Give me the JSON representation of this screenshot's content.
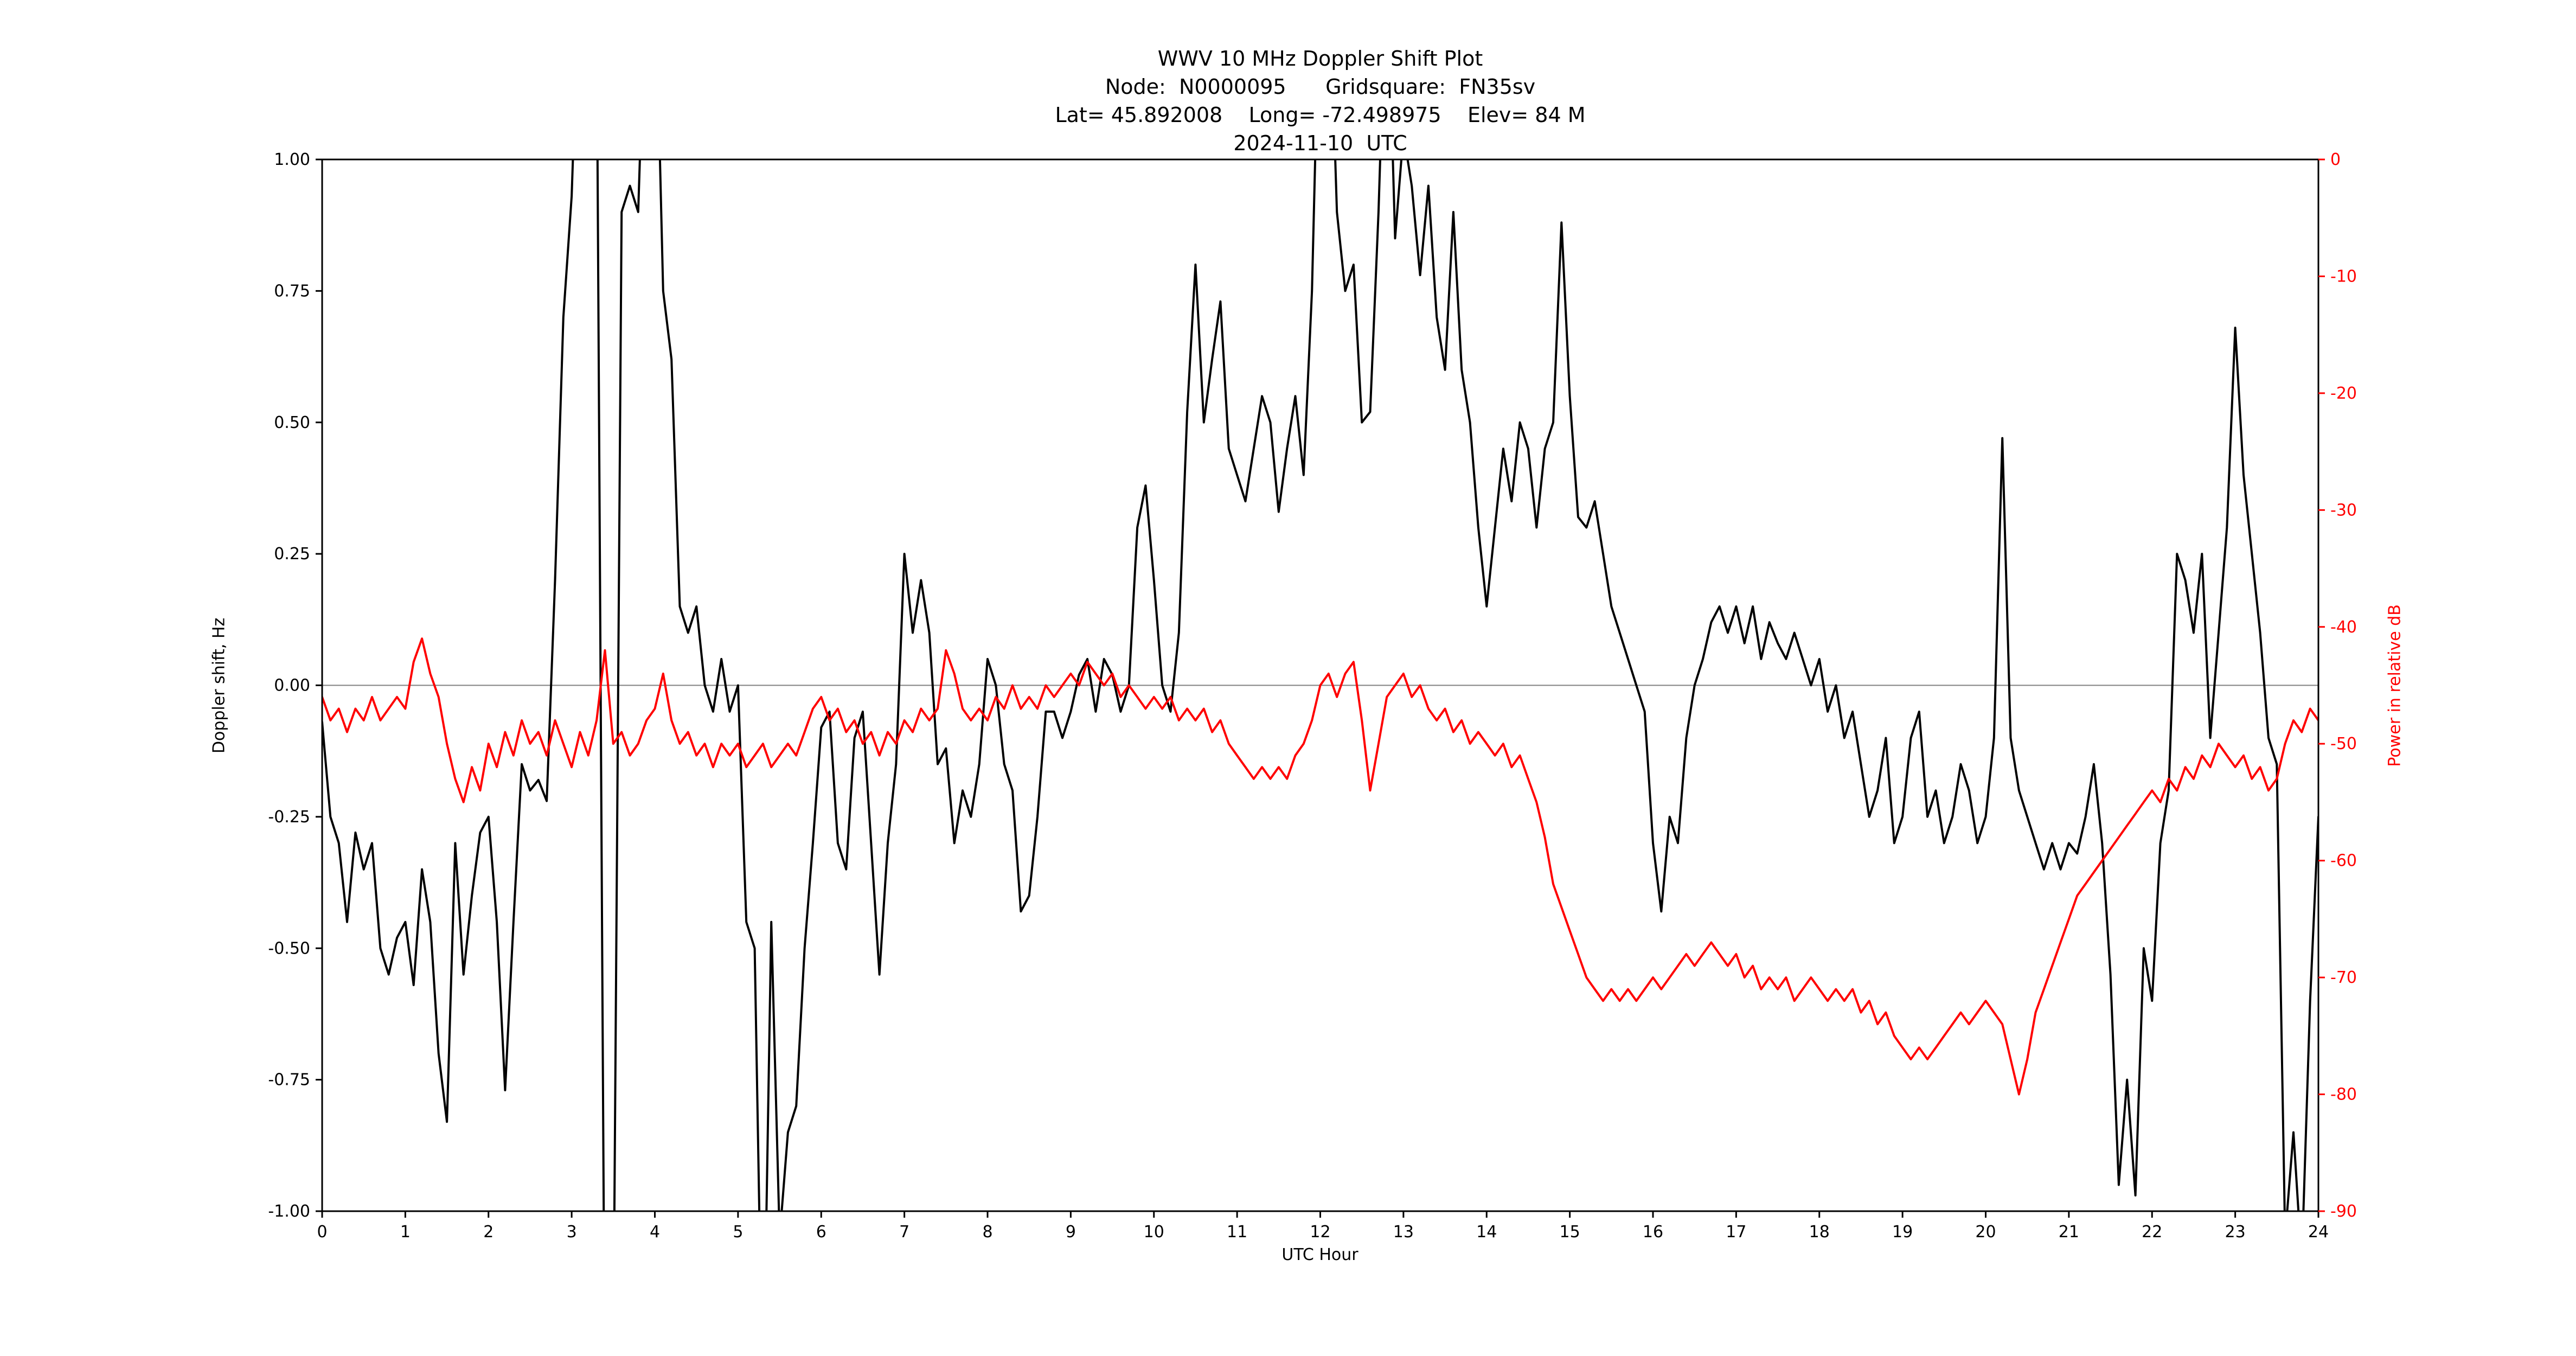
{
  "colors": {
    "background": "#ffffff",
    "doppler_line": "#000000",
    "power_line": "#ff0000",
    "zero_line": "#808080",
    "spine": "#000000"
  },
  "chart_data": {
    "type": "line",
    "title": "WWV 10 MHz Doppler Shift Plot",
    "subtitle_lines": [
      "Node:  N0000095      Gridsquare:  FN35sv",
      "Lat= 45.892008    Long= -72.498975    Elev= 84 M",
      "2024-11-10  UTC"
    ],
    "xlabel": "UTC Hour",
    "ylabel_left": "Doppler shift, Hz",
    "ylabel_right": "Power in relative dB",
    "x_range": [
      0,
      24
    ],
    "y_left_range": [
      -1.0,
      1.0
    ],
    "y_right_range": [
      -90,
      0
    ],
    "grid": false,
    "zero_line_y": 0.0,
    "legend": "none",
    "x_ticks": {
      "values": [
        0,
        1,
        2,
        3,
        4,
        5,
        6,
        7,
        8,
        9,
        10,
        11,
        12,
        13,
        14,
        15,
        16,
        17,
        18,
        19,
        20,
        21,
        22,
        23,
        24
      ],
      "labels": [
        "0",
        "1",
        "2",
        "3",
        "4",
        "5",
        "6",
        "7",
        "8",
        "9",
        "10",
        "11",
        "12",
        "13",
        "14",
        "15",
        "16",
        "17",
        "18",
        "19",
        "20",
        "21",
        "22",
        "23",
        "24"
      ]
    },
    "y_left_ticks": {
      "values": [
        1.0,
        0.75,
        0.5,
        0.25,
        0.0,
        -0.25,
        -0.5,
        -0.75,
        -1.0
      ],
      "labels": [
        "1.00",
        "0.75",
        "0.50",
        "0.25",
        "0.00",
        "-0.25",
        "-0.50",
        "-0.75",
        "-1.00"
      ]
    },
    "y_right_ticks": {
      "values": [
        0,
        -10,
        -20,
        -30,
        -40,
        -50,
        -60,
        -70,
        -80,
        -90
      ],
      "labels": [
        "0",
        "-10",
        "-20",
        "-30",
        "-40",
        "-50",
        "-60",
        "-70",
        "-80",
        "-90"
      ]
    },
    "series": [
      {
        "name": "Doppler shift (Hz)",
        "axis": "left",
        "color": "#000000",
        "x_start": 0,
        "x_step": 0.1,
        "y": [
          -0.07,
          -0.25,
          -0.3,
          -0.45,
          -0.28,
          -0.35,
          -0.3,
          -0.5,
          -0.55,
          -0.48,
          -0.45,
          -0.57,
          -0.35,
          -0.45,
          -0.7,
          -0.83,
          -0.3,
          -0.55,
          -0.4,
          -0.28,
          -0.25,
          -0.45,
          -0.77,
          -0.45,
          -0.15,
          -0.2,
          -0.18,
          -0.22,
          0.2,
          0.7,
          0.93,
          1.4,
          1.4,
          1.3,
          -1.4,
          -1.3,
          0.9,
          0.95,
          0.9,
          1.4,
          1.4,
          0.75,
          0.62,
          0.15,
          0.1,
          0.15,
          0.0,
          -0.05,
          0.05,
          -0.05,
          0.0,
          -0.45,
          -0.5,
          -1.4,
          -0.45,
          -1.05,
          -0.85,
          -0.8,
          -0.5,
          -0.3,
          -0.08,
          -0.05,
          -0.3,
          -0.35,
          -0.1,
          -0.05,
          -0.3,
          -0.55,
          -0.3,
          -0.15,
          0.25,
          0.1,
          0.2,
          0.1,
          -0.15,
          -0.12,
          -0.3,
          -0.2,
          -0.25,
          -0.15,
          0.05,
          0.0,
          -0.15,
          -0.2,
          -0.43,
          -0.4,
          -0.25,
          -0.05,
          -0.05,
          -0.1,
          -0.05,
          0.02,
          0.05,
          -0.05,
          0.05,
          0.02,
          -0.05,
          0.0,
          0.3,
          0.38,
          0.2,
          0.0,
          -0.05,
          0.1,
          0.52,
          0.8,
          0.5,
          0.62,
          0.73,
          0.45,
          0.4,
          0.35,
          0.45,
          0.55,
          0.5,
          0.33,
          0.45,
          0.55,
          0.4,
          0.75,
          1.4,
          1.4,
          0.9,
          0.75,
          0.8,
          0.5,
          0.52,
          0.9,
          1.4,
          0.85,
          1.05,
          0.95,
          0.78,
          0.95,
          0.7,
          0.6,
          0.9,
          0.6,
          0.5,
          0.3,
          0.15,
          0.3,
          0.45,
          0.35,
          0.5,
          0.45,
          0.3,
          0.45,
          0.5,
          0.88,
          0.55,
          0.32,
          0.3,
          0.35,
          0.25,
          0.15,
          0.1,
          0.05,
          0.0,
          -0.05,
          -0.3,
          -0.43,
          -0.25,
          -0.3,
          -0.1,
          0.0,
          0.05,
          0.12,
          0.15,
          0.1,
          0.15,
          0.08,
          0.15,
          0.05,
          0.12,
          0.08,
          0.05,
          0.1,
          0.05,
          0.0,
          0.05,
          -0.05,
          0.0,
          -0.1,
          -0.05,
          -0.15,
          -0.25,
          -0.2,
          -0.1,
          -0.3,
          -0.25,
          -0.1,
          -0.05,
          -0.25,
          -0.2,
          -0.3,
          -0.25,
          -0.15,
          -0.2,
          -0.3,
          -0.25,
          -0.1,
          0.47,
          -0.1,
          -0.2,
          -0.25,
          -0.3,
          -0.35,
          -0.3,
          -0.35,
          -0.3,
          -0.32,
          -0.25,
          -0.15,
          -0.3,
          -0.55,
          -0.95,
          -0.75,
          -0.97,
          -0.5,
          -0.6,
          -0.3,
          -0.2,
          0.25,
          0.2,
          0.1,
          0.25,
          -0.1,
          0.1,
          0.3,
          0.68,
          0.4,
          0.25,
          0.1,
          -0.1,
          -0.15,
          -1.05,
          -0.85,
          -1.1,
          -0.6,
          -0.25
        ]
      },
      {
        "name": "Power in relative dB",
        "axis": "right",
        "color": "#ff0000",
        "x_start": 0,
        "x_step": 0.1,
        "y": [
          -46,
          -48,
          -47,
          -49,
          -47,
          -48,
          -46,
          -48,
          -47,
          -46,
          -47,
          -43,
          -41,
          -44,
          -46,
          -50,
          -53,
          -55,
          -52,
          -54,
          -50,
          -52,
          -49,
          -51,
          -48,
          -50,
          -49,
          -51,
          -48,
          -50,
          -52,
          -49,
          -51,
          -48,
          -42,
          -50,
          -49,
          -51,
          -50,
          -48,
          -47,
          -44,
          -48,
          -50,
          -49,
          -51,
          -50,
          -52,
          -50,
          -51,
          -50,
          -52,
          -51,
          -50,
          -52,
          -51,
          -50,
          -51,
          -49,
          -47,
          -46,
          -48,
          -47,
          -49,
          -48,
          -50,
          -49,
          -51,
          -49,
          -50,
          -48,
          -49,
          -47,
          -48,
          -47,
          -42,
          -44,
          -47,
          -48,
          -47,
          -48,
          -46,
          -47,
          -45,
          -47,
          -46,
          -47,
          -45,
          -46,
          -45,
          -44,
          -45,
          -43,
          -44,
          -45,
          -44,
          -46,
          -45,
          -46,
          -47,
          -46,
          -47,
          -46,
          -48,
          -47,
          -48,
          -47,
          -49,
          -48,
          -50,
          -51,
          -52,
          -53,
          -52,
          -53,
          -52,
          -53,
          -51,
          -50,
          -48,
          -45,
          -44,
          -46,
          -44,
          -43,
          -48,
          -54,
          -50,
          -46,
          -45,
          -44,
          -46,
          -45,
          -47,
          -48,
          -47,
          -49,
          -48,
          -50,
          -49,
          -50,
          -51,
          -50,
          -52,
          -51,
          -53,
          -55,
          -58,
          -62,
          -64,
          -66,
          -68,
          -70,
          -71,
          -72,
          -71,
          -72,
          -71,
          -72,
          -71,
          -70,
          -71,
          -70,
          -69,
          -68,
          -69,
          -68,
          -67,
          -68,
          -69,
          -68,
          -70,
          -69,
          -71,
          -70,
          -71,
          -70,
          -72,
          -71,
          -70,
          -71,
          -72,
          -71,
          -72,
          -71,
          -73,
          -72,
          -74,
          -73,
          -75,
          -76,
          -77,
          -76,
          -77,
          -76,
          -75,
          -74,
          -73,
          -74,
          -73,
          -72,
          -73,
          -74,
          -77,
          -80,
          -77,
          -73,
          -71,
          -69,
          -67,
          -65,
          -63,
          -62,
          -61,
          -60,
          -59,
          -58,
          -57,
          -56,
          -55,
          -54,
          -55,
          -53,
          -54,
          -52,
          -53,
          -51,
          -52,
          -50,
          -51,
          -52,
          -51,
          -53,
          -52,
          -54,
          -53,
          -50,
          -48,
          -49,
          -47,
          -48
        ]
      }
    ]
  }
}
